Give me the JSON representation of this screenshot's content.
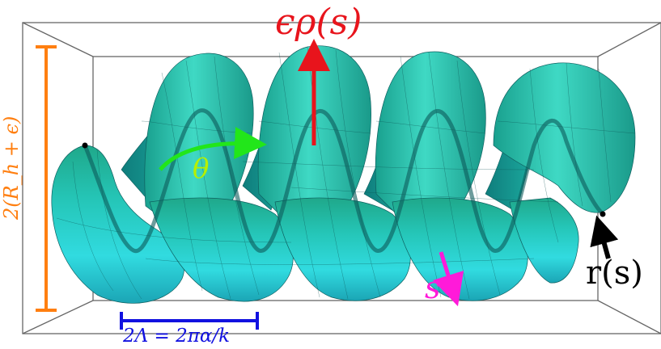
{
  "labels": {
    "radius_label": "ϵρ(s)",
    "angle_label": "θ",
    "arclength_label": "s",
    "centerline_label": "r(s)",
    "wavelength_label": "2Λ = 2πα/k",
    "height_label": "2(R_h + ϵ)"
  },
  "colors": {
    "tube_light": "#2fd9d6",
    "tube_mid": "#20b8b4",
    "tube_dark": "#157f7f",
    "tube_top": "#1fa88a",
    "red_arrow": "#e8141c",
    "green_arrow": "#22e61a",
    "magenta_arrow": "#ff1ad9",
    "black_arrow": "#000000",
    "blue_bracket": "#1111e0",
    "orange_bracket": "#ff7f10",
    "box_lines": "#555555"
  },
  "icons": {
    "radius_arrow": "arrow-up",
    "angle_arrow": "curved-arrow-right",
    "arclength_arrow": "arrow-down",
    "centerline_arrow": "arrow-up-left"
  }
}
